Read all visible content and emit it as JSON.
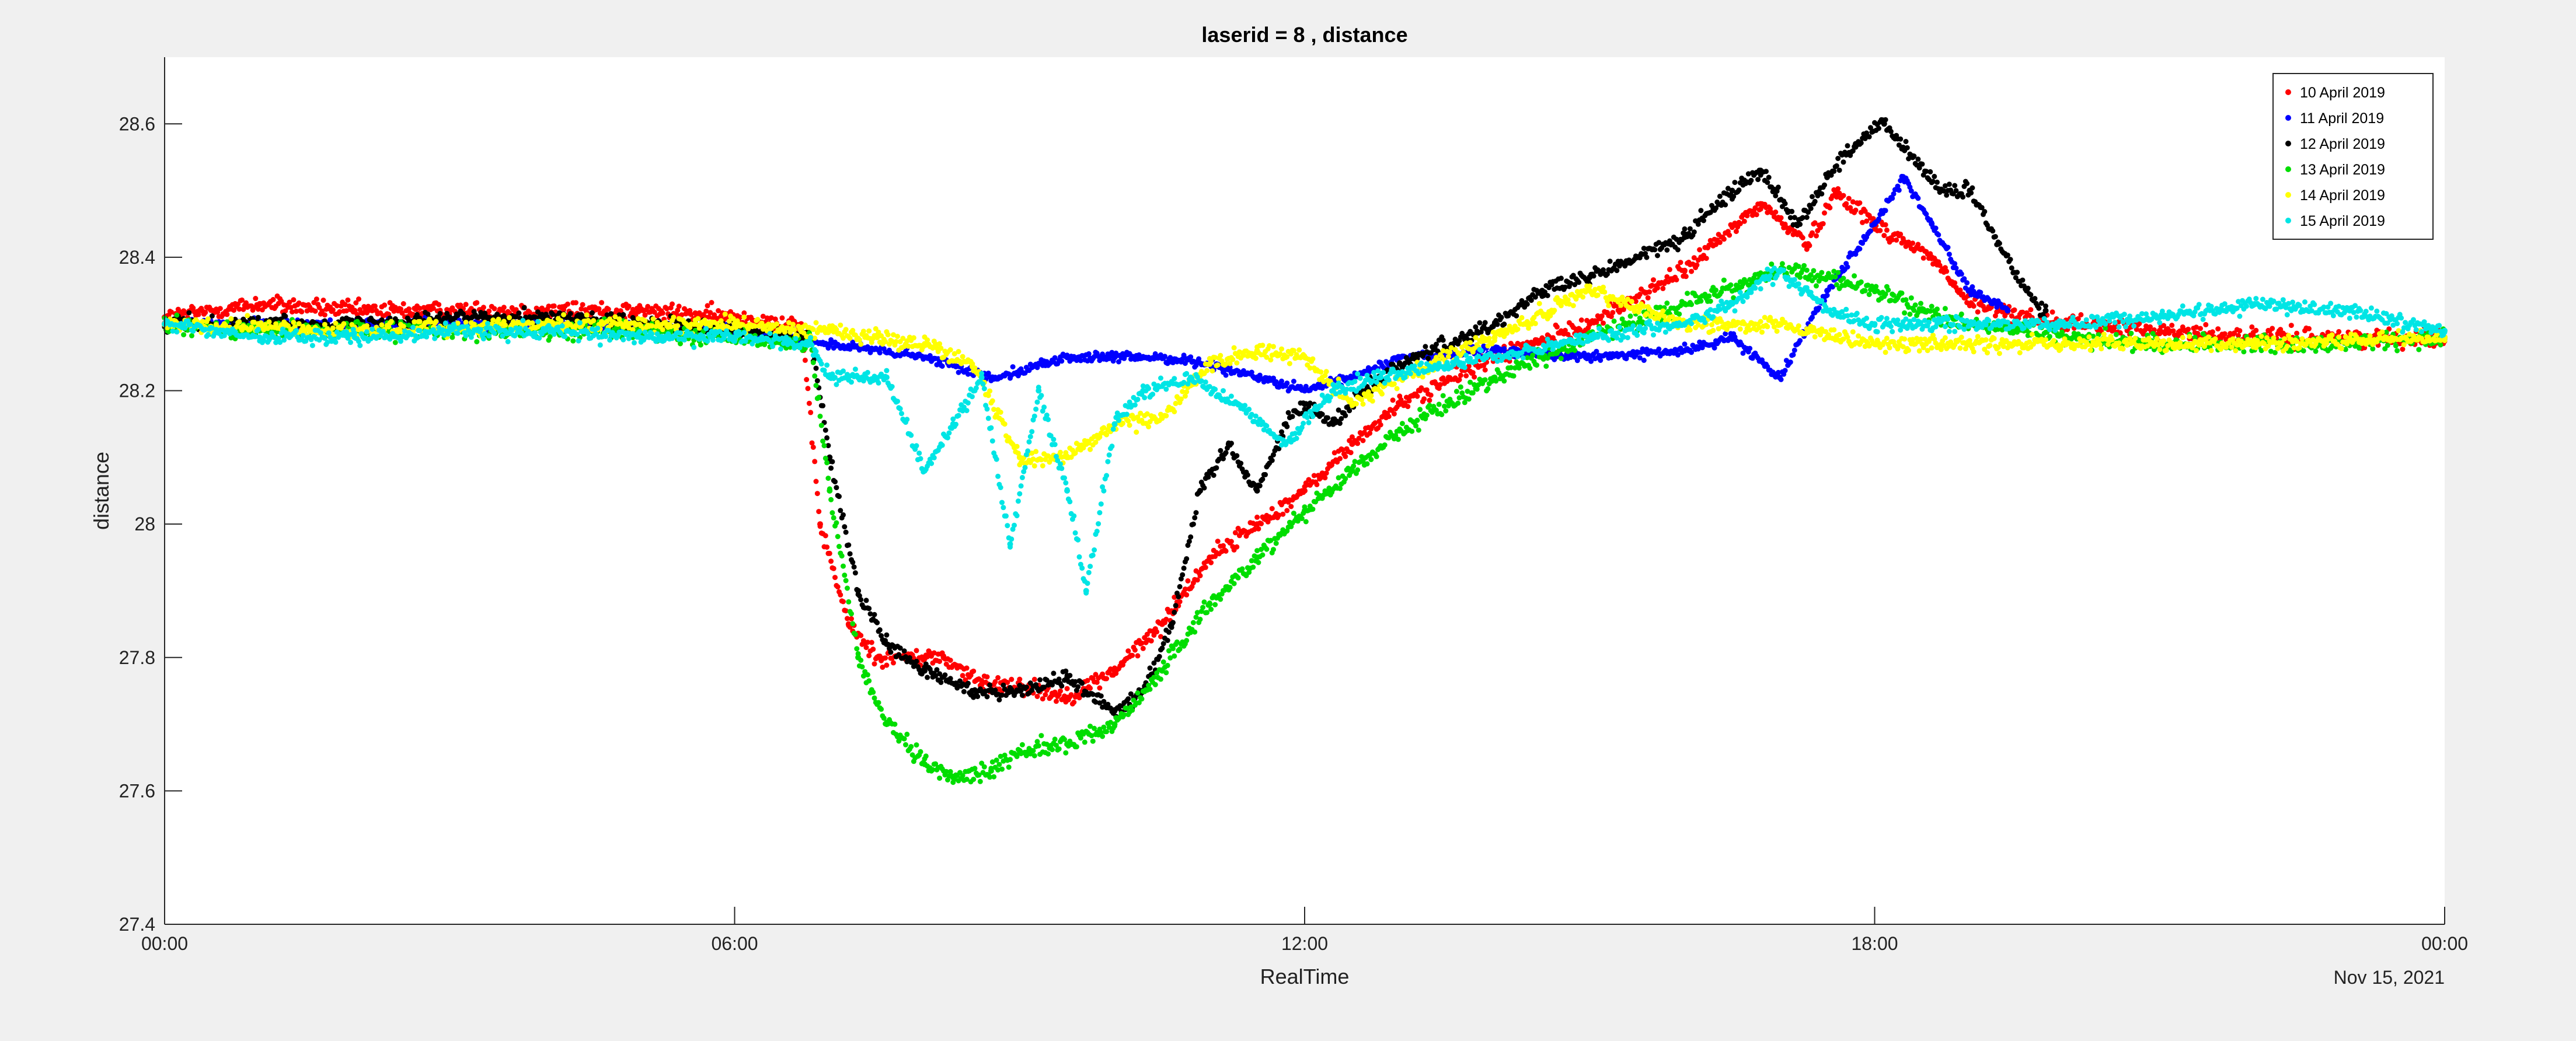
{
  "chart_data": {
    "type": "scatter",
    "title": "laserid = 8 ,  distance",
    "xlabel": "RealTime",
    "ylabel": "distance",
    "date_label": "Nov 15, 2021",
    "xlim": [
      "00:00",
      "00:00"
    ],
    "x_domain_hours": [
      0,
      24
    ],
    "ylim": [
      27.4,
      28.7
    ],
    "x_ticks": [
      "00:00",
      "06:00",
      "12:00",
      "18:00",
      "00:00"
    ],
    "y_ticks": [
      "27.4",
      "27.6",
      "27.8",
      "28",
      "28.2",
      "28.4",
      "28.6"
    ],
    "y_tick_values": [
      27.4,
      27.6,
      27.8,
      28.0,
      28.2,
      28.4,
      28.6
    ],
    "grid": false,
    "legend_position": "top-right",
    "series": [
      {
        "name": "10 April 2019",
        "color": "#ff0000",
        "spread": 0.022,
        "points": [
          [
            0,
            28.31
          ],
          [
            1,
            28.33
          ],
          [
            2,
            28.32
          ],
          [
            3,
            28.32
          ],
          [
            4,
            28.32
          ],
          [
            5,
            28.32
          ],
          [
            6,
            28.31
          ],
          [
            6.7,
            28.3
          ],
          [
            6.9,
            28.0
          ],
          [
            7.2,
            27.85
          ],
          [
            7.5,
            27.8
          ],
          [
            7.8,
            27.8
          ],
          [
            8.2,
            27.8
          ],
          [
            8.6,
            27.76
          ],
          [
            9.0,
            27.76
          ],
          [
            9.5,
            27.74
          ],
          [
            10.0,
            27.78
          ],
          [
            10.5,
            27.85
          ],
          [
            11.0,
            27.95
          ],
          [
            11.5,
            28.0
          ],
          [
            12.0,
            28.05
          ],
          [
            12.5,
            28.12
          ],
          [
            13.0,
            28.18
          ],
          [
            14.0,
            28.25
          ],
          [
            15.0,
            28.3
          ],
          [
            16.0,
            28.38
          ],
          [
            16.8,
            28.48
          ],
          [
            17.3,
            28.42
          ],
          [
            17.6,
            28.5
          ],
          [
            18.0,
            28.45
          ],
          [
            18.6,
            28.4
          ],
          [
            19.0,
            28.33
          ],
          [
            20.0,
            28.3
          ],
          [
            21.0,
            28.29
          ],
          [
            22.0,
            28.28
          ],
          [
            23.0,
            28.28
          ],
          [
            24.0,
            28.28
          ]
        ]
      },
      {
        "name": "11 April 2019",
        "color": "#0000ff",
        "spread": 0.012,
        "points": [
          [
            0,
            28.3
          ],
          [
            2,
            28.3
          ],
          [
            4,
            28.3
          ],
          [
            6,
            28.29
          ],
          [
            7,
            28.27
          ],
          [
            8,
            28.25
          ],
          [
            8.7,
            28.22
          ],
          [
            9.0,
            28.23
          ],
          [
            9.5,
            28.25
          ],
          [
            10.0,
            28.25
          ],
          [
            10.5,
            28.25
          ],
          [
            11.0,
            28.24
          ],
          [
            11.5,
            28.22
          ],
          [
            12.0,
            28.2
          ],
          [
            12.5,
            28.22
          ],
          [
            13.0,
            28.25
          ],
          [
            14.0,
            28.26
          ],
          [
            15.0,
            28.25
          ],
          [
            16.0,
            28.26
          ],
          [
            16.5,
            28.28
          ],
          [
            17.0,
            28.22
          ],
          [
            17.5,
            28.35
          ],
          [
            18.0,
            28.45
          ],
          [
            18.3,
            28.52
          ],
          [
            18.6,
            28.45
          ],
          [
            19.0,
            28.35
          ],
          [
            19.4,
            28.32
          ]
        ]
      },
      {
        "name": "12 April 2019",
        "color": "#000000",
        "spread": 0.02,
        "points": [
          [
            0,
            28.3
          ],
          [
            1,
            28.3
          ],
          [
            2,
            28.3
          ],
          [
            3,
            28.31
          ],
          [
            4,
            28.31
          ],
          [
            5,
            28.3
          ],
          [
            6,
            28.29
          ],
          [
            6.8,
            28.28
          ],
          [
            7.0,
            28.1
          ],
          [
            7.3,
            27.9
          ],
          [
            7.6,
            27.82
          ],
          [
            8.0,
            27.78
          ],
          [
            8.5,
            27.75
          ],
          [
            9.0,
            27.75
          ],
          [
            9.5,
            27.77
          ],
          [
            10.0,
            27.72
          ],
          [
            10.3,
            27.75
          ],
          [
            10.6,
            27.85
          ],
          [
            10.9,
            28.05
          ],
          [
            11.2,
            28.12
          ],
          [
            11.5,
            28.05
          ],
          [
            11.8,
            28.15
          ],
          [
            12.0,
            28.18
          ],
          [
            12.3,
            28.15
          ],
          [
            12.6,
            28.2
          ],
          [
            13.0,
            28.24
          ],
          [
            14.0,
            28.3
          ],
          [
            14.5,
            28.35
          ],
          [
            15.0,
            28.37
          ],
          [
            15.5,
            28.4
          ],
          [
            16.0,
            28.43
          ],
          [
            16.5,
            28.5
          ],
          [
            16.8,
            28.53
          ],
          [
            17.2,
            28.45
          ],
          [
            17.5,
            28.52
          ],
          [
            17.8,
            28.57
          ],
          [
            18.1,
            28.6
          ],
          [
            18.4,
            28.55
          ],
          [
            18.7,
            28.5
          ],
          [
            19.0,
            28.5
          ],
          [
            19.3,
            28.42
          ],
          [
            19.6,
            28.35
          ],
          [
            19.8,
            28.32
          ]
        ]
      },
      {
        "name": "13 April 2019",
        "color": "#00dd00",
        "spread": 0.022,
        "points": [
          [
            0,
            28.3
          ],
          [
            1,
            28.29
          ],
          [
            2,
            28.29
          ],
          [
            3,
            28.29
          ],
          [
            4,
            28.29
          ],
          [
            5,
            28.29
          ],
          [
            6,
            28.28
          ],
          [
            6.8,
            28.27
          ],
          [
            7.0,
            28.05
          ],
          [
            7.3,
            27.8
          ],
          [
            7.6,
            27.7
          ],
          [
            8.0,
            27.64
          ],
          [
            8.3,
            27.62
          ],
          [
            8.7,
            27.63
          ],
          [
            9.0,
            27.66
          ],
          [
            9.5,
            27.67
          ],
          [
            10.0,
            27.7
          ],
          [
            10.5,
            27.78
          ],
          [
            11.0,
            27.88
          ],
          [
            11.5,
            27.95
          ],
          [
            12.0,
            28.02
          ],
          [
            12.5,
            28.08
          ],
          [
            13.0,
            28.14
          ],
          [
            14.0,
            28.22
          ],
          [
            15.0,
            28.28
          ],
          [
            16.0,
            28.33
          ],
          [
            17.0,
            28.38
          ],
          [
            17.5,
            28.37
          ],
          [
            18.0,
            28.35
          ],
          [
            18.5,
            28.32
          ],
          [
            19.0,
            28.3
          ],
          [
            20.0,
            28.28
          ],
          [
            21.0,
            28.27
          ],
          [
            22.0,
            28.27
          ],
          [
            23.0,
            28.27
          ],
          [
            24.0,
            28.28
          ]
        ]
      },
      {
        "name": "14 April 2019",
        "color": "#ffff00",
        "spread": 0.02,
        "points": [
          [
            0,
            28.3
          ],
          [
            2,
            28.29
          ],
          [
            4,
            28.3
          ],
          [
            6,
            28.3
          ],
          [
            7.0,
            28.29
          ],
          [
            7.5,
            28.28
          ],
          [
            8.0,
            28.27
          ],
          [
            8.5,
            28.24
          ],
          [
            9.0,
            28.1
          ],
          [
            9.5,
            28.1
          ],
          [
            10.0,
            28.15
          ],
          [
            10.5,
            28.16
          ],
          [
            11.0,
            28.24
          ],
          [
            11.5,
            28.26
          ],
          [
            12.0,
            28.25
          ],
          [
            12.5,
            28.18
          ],
          [
            13.0,
            28.22
          ],
          [
            14.0,
            28.28
          ],
          [
            15.0,
            28.35
          ],
          [
            16.0,
            28.3
          ],
          [
            17.0,
            28.3
          ],
          [
            17.5,
            28.28
          ],
          [
            18.0,
            28.27
          ],
          [
            19.0,
            28.27
          ],
          [
            20.0,
            28.27
          ],
          [
            22.0,
            28.27
          ],
          [
            24.0,
            28.28
          ]
        ]
      },
      {
        "name": "15 April 2019",
        "color": "#00e5e5",
        "spread": 0.018,
        "points": [
          [
            0,
            28.3
          ],
          [
            1,
            28.28
          ],
          [
            2,
            28.28
          ],
          [
            3,
            28.29
          ],
          [
            4,
            28.29
          ],
          [
            5,
            28.28
          ],
          [
            6,
            28.28
          ],
          [
            6.8,
            28.27
          ],
          [
            7.0,
            28.22
          ],
          [
            7.3,
            28.22
          ],
          [
            7.6,
            28.22
          ],
          [
            8.0,
            28.08
          ],
          [
            8.3,
            28.15
          ],
          [
            8.6,
            28.22
          ],
          [
            8.9,
            27.97
          ],
          [
            9.2,
            28.2
          ],
          [
            9.5,
            28.05
          ],
          [
            9.7,
            27.9
          ],
          [
            10.0,
            28.15
          ],
          [
            10.3,
            28.2
          ],
          [
            10.8,
            28.22
          ],
          [
            11.3,
            28.18
          ],
          [
            11.8,
            28.12
          ],
          [
            12.3,
            28.2
          ],
          [
            12.8,
            28.22
          ],
          [
            13.5,
            28.24
          ],
          [
            14.0,
            28.25
          ],
          [
            15.0,
            28.28
          ],
          [
            16.0,
            28.3
          ],
          [
            16.5,
            28.33
          ],
          [
            17.0,
            28.38
          ],
          [
            17.5,
            28.32
          ],
          [
            18.0,
            28.3
          ],
          [
            19.0,
            28.3
          ],
          [
            20.0,
            28.3
          ],
          [
            21.0,
            28.31
          ],
          [
            22.0,
            28.33
          ],
          [
            23.0,
            28.32
          ],
          [
            24.0,
            28.29
          ]
        ]
      }
    ]
  }
}
